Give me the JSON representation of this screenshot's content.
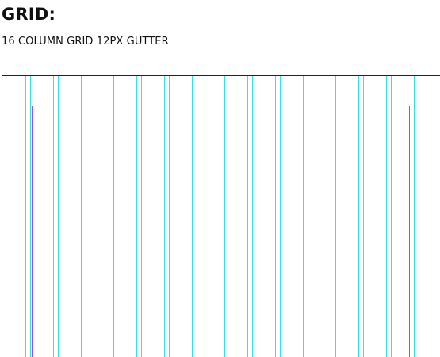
{
  "header": {
    "title": "GRID:",
    "subtitle": "16 COLUMN GRID 12PX GUTTER"
  },
  "grid": {
    "columns": 16,
    "gutter_label": "12PX",
    "column_line_color": "#33e0e6",
    "margin_line_color": "#b04ad8",
    "frame_color": "#222222"
  }
}
